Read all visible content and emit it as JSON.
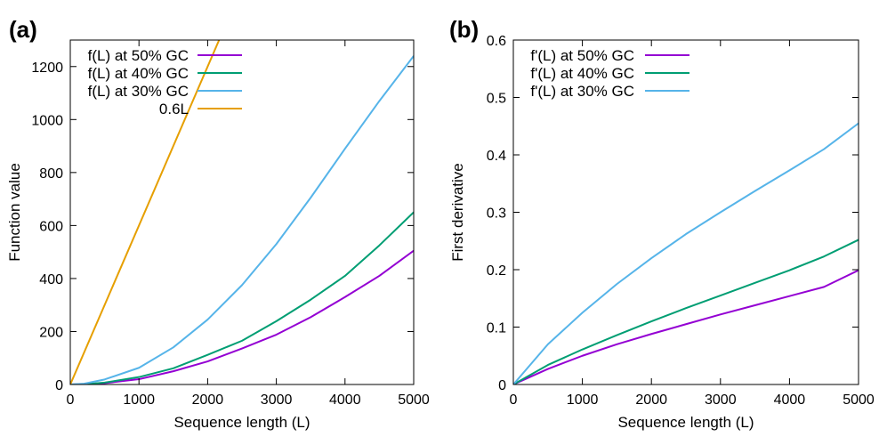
{
  "chart_data": [
    {
      "type": "line",
      "panel_label": "(a)",
      "xlabel": "Sequence length (L)",
      "ylabel": "Function value",
      "xlim": [
        0,
        5000
      ],
      "ylim": [
        0,
        1300
      ],
      "xticks": [
        0,
        1000,
        2000,
        3000,
        4000,
        5000
      ],
      "yticks": [
        0,
        200,
        400,
        600,
        800,
        1000,
        1200
      ],
      "legend_position": "top-left",
      "series": [
        {
          "name": "f(L) at 50% GC",
          "color": "#9400d3",
          "x": [
            0,
            200,
            500,
            1000,
            1500,
            2000,
            2500,
            3000,
            3500,
            4000,
            4500,
            5000
          ],
          "y": [
            0,
            1,
            5,
            20,
            50,
            87,
            136,
            188,
            254,
            330,
            410,
            505
          ]
        },
        {
          "name": "f(L) at 40% GC",
          "color": "#009e73",
          "x": [
            0,
            200,
            500,
            1000,
            1500,
            2000,
            2500,
            3000,
            3500,
            4000,
            4500,
            5000
          ],
          "y": [
            0,
            1,
            7,
            28,
            61,
            112,
            165,
            239,
            320,
            410,
            525,
            650
          ]
        },
        {
          "name": "f(L) at 30% GC",
          "color": "#56b4e9",
          "x": [
            0,
            200,
            500,
            1000,
            1500,
            2000,
            2500,
            3000,
            3500,
            4000,
            4500,
            5000
          ],
          "y": [
            0,
            3,
            19,
            63,
            140,
            245,
            375,
            530,
            705,
            890,
            1070,
            1240
          ]
        },
        {
          "name": "0.6L",
          "color": "#e69f00",
          "x": [
            0,
            2170
          ],
          "y": [
            0,
            1302
          ]
        }
      ]
    },
    {
      "type": "line",
      "panel_label": "(b)",
      "xlabel": "Sequence length (L)",
      "ylabel": "First derivative",
      "xlim": [
        0,
        5000
      ],
      "ylim": [
        0,
        0.6
      ],
      "xticks": [
        0,
        1000,
        2000,
        3000,
        4000,
        5000
      ],
      "yticks": [
        0,
        0.1,
        0.2,
        0.3,
        0.4,
        0.5,
        0.6
      ],
      "legend_position": "top-left",
      "series": [
        {
          "name": "f'(L) at 50% GC",
          "color": "#9400d3",
          "x": [
            0,
            500,
            1000,
            1500,
            2000,
            2500,
            3000,
            3500,
            4000,
            4500,
            5000
          ],
          "y": [
            0,
            0.027,
            0.05,
            0.07,
            0.088,
            0.105,
            0.122,
            0.138,
            0.154,
            0.17,
            0.199
          ]
        },
        {
          "name": "f'(L) at 40% GC",
          "color": "#009e73",
          "x": [
            0,
            500,
            1000,
            1500,
            2000,
            2500,
            3000,
            3500,
            4000,
            4500,
            5000
          ],
          "y": [
            0,
            0.034,
            0.061,
            0.086,
            0.11,
            0.133,
            0.155,
            0.177,
            0.199,
            0.223,
            0.252
          ]
        },
        {
          "name": "f'(L) at 30% GC",
          "color": "#56b4e9",
          "x": [
            0,
            500,
            1000,
            1500,
            2000,
            2500,
            3000,
            3500,
            4000,
            4500,
            5000
          ],
          "y": [
            0,
            0.07,
            0.125,
            0.175,
            0.22,
            0.262,
            0.3,
            0.337,
            0.373,
            0.41,
            0.455
          ]
        }
      ]
    }
  ]
}
